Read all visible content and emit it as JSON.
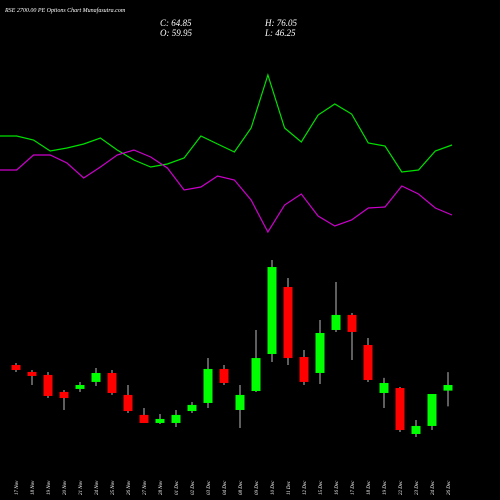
{
  "chart_data": {
    "type": "candlestick",
    "title": "RSE 2700.00 PE Options Chart Munafasutra.com",
    "ohlc_labels": {
      "close": "C: 64.85",
      "high": "H: 76.05",
      "open": "O: 59.95",
      "low": "L: 46.25"
    },
    "up_color": "#00ff00",
    "down_color": "#ff0000",
    "categories": [
      "17 Nov",
      "18 Nov",
      "19 Nov",
      "20 Nov",
      "21 Nov",
      "24 Nov",
      "25 Nov",
      "26 Nov",
      "27 Nov",
      "28 Nov",
      "01 Dec",
      "02 Dec",
      "03 Dec",
      "04 Dec",
      "08 Dec",
      "09 Dec",
      "10 Dec",
      "11 Dec",
      "12 Dec",
      "15 Dec",
      "16 Dec",
      "17 Dec",
      "18 Dec",
      "19 Dec",
      "22 Dec",
      "23 Dec",
      "24 Dec",
      "26 Dec"
    ],
    "open": [
      82.25,
      76.2,
      73.6,
      58.8,
      61.4,
      67.5,
      75.3,
      56.2,
      38.8,
      31.8,
      31.8,
      42.2,
      49.2,
      78.8,
      43.1,
      59.6,
      91.8,
      150.1,
      89.2,
      75.3,
      112.7,
      125.8,
      99.65,
      57.9,
      62.2,
      22.2,
      29.2,
      59.95
    ],
    "high": [
      84.0,
      77.9,
      76.2,
      60.5,
      67.5,
      79.6,
      77.9,
      64.85,
      44.8,
      39.6,
      43.1,
      50.1,
      88.3,
      82.25,
      64.85,
      112.7,
      173.6,
      157.9,
      95.3,
      121.4,
      154.5,
      127.5,
      105.7,
      71.0,
      63.1,
      34.4,
      57.0,
      76.05
    ],
    "low": [
      76.2,
      64.85,
      53.5,
      43.1,
      58.8,
      64.0,
      56.2,
      40.5,
      31.8,
      30.9,
      28.3,
      40.5,
      44.8,
      64.85,
      27.4,
      58.8,
      84.9,
      82.25,
      64.85,
      65.7,
      111.0,
      86.6,
      67.5,
      44.8,
      24.0,
      19.6,
      25.7,
      46.25
    ],
    "close": [
      77.9,
      72.7,
      55.3,
      53.5,
      64.85,
      75.3,
      57.9,
      42.2,
      31.8,
      35.3,
      38.8,
      47.5,
      78.8,
      66.6,
      56.2,
      88.3,
      167.5,
      88.3,
      67.5,
      110.1,
      125.8,
      111.0,
      69.2,
      66.6,
      25.7,
      29.2,
      57.0,
      64.85
    ],
    "lines": [
      {
        "color": "#00e000",
        "values": [
          114,
          114,
          110,
          99,
          102,
          106,
          112,
          100,
          90,
          83,
          86,
          92,
          114,
          106,
          98,
          122,
          175,
          122,
          108,
          135,
          146,
          136,
          107,
          104,
          78,
          80,
          99,
          105
        ]
      },
      {
        "color": "#cc00cc",
        "values": [
          80,
          80,
          95,
          95,
          87,
          72,
          83,
          95,
          100,
          93,
          82,
          60,
          63,
          74,
          70,
          50,
          18,
          45,
          56,
          34,
          24,
          30,
          42,
          43,
          64,
          56,
          42,
          35
        ]
      }
    ]
  }
}
